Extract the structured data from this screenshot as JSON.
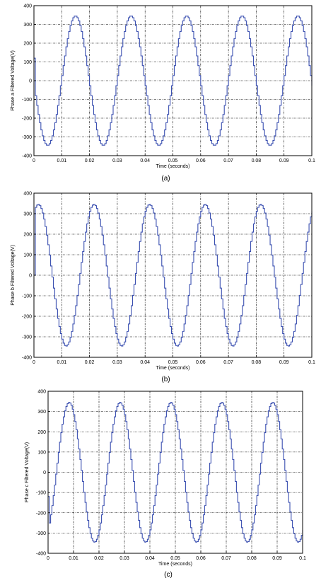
{
  "chart_data": [
    {
      "type": "line",
      "caption": "(a)",
      "xlabel": "Time (seconds)",
      "ylabel": "Phase a Filtered Voltage(V)",
      "xlim": [
        0,
        0.1
      ],
      "ylim": [
        -400,
        400
      ],
      "xticks": [
        0,
        0.01,
        0.02,
        0.03,
        0.04,
        0.05,
        0.06,
        0.07,
        0.08,
        0.09,
        0.1
      ],
      "yticks": [
        -400,
        -300,
        -200,
        -100,
        0,
        100,
        200,
        300,
        400
      ],
      "grid": true,
      "series": [
        {
          "amplitude": 345,
          "frequency_hz": 50,
          "phase_deg": 180,
          "start_value": 120,
          "waveform": "stepped sine",
          "line_color": "#3a4fb0"
        }
      ]
    },
    {
      "type": "line",
      "caption": "(b)",
      "xlabel": "Time (seconds)",
      "ylabel": "Phase b Filtered Voltage(V)",
      "xlim": [
        0,
        0.1
      ],
      "ylim": [
        -400,
        400
      ],
      "xticks": [
        0,
        0.01,
        0.02,
        0.03,
        0.04,
        0.05,
        0.06,
        0.07,
        0.08,
        0.09,
        0.1
      ],
      "yticks": [
        -400,
        -300,
        -200,
        -100,
        0,
        100,
        200,
        300,
        400
      ],
      "grid": true,
      "series": [
        {
          "amplitude": 345,
          "frequency_hz": 50,
          "phase_deg": 60,
          "start_value": 0,
          "waveform": "stepped sine",
          "line_color": "#3a4fb0"
        }
      ]
    },
    {
      "type": "line",
      "caption": "(c)",
      "xlabel": "Time (seconds)",
      "ylabel": "Phase c Filtered Voltage(V)",
      "xlim": [
        0,
        0.1
      ],
      "ylim": [
        -400,
        400
      ],
      "xticks": [
        0,
        0.01,
        0.02,
        0.03,
        0.04,
        0.05,
        0.06,
        0.07,
        0.08,
        0.09,
        0.1
      ],
      "yticks": [
        -400,
        -300,
        -200,
        -100,
        0,
        100,
        200,
        300,
        400
      ],
      "grid": true,
      "series": [
        {
          "amplitude": 345,
          "frequency_hz": 50,
          "phase_deg": -60,
          "start_value": -120,
          "waveform": "stepped sine",
          "line_color": "#3a4fb0"
        }
      ]
    }
  ]
}
